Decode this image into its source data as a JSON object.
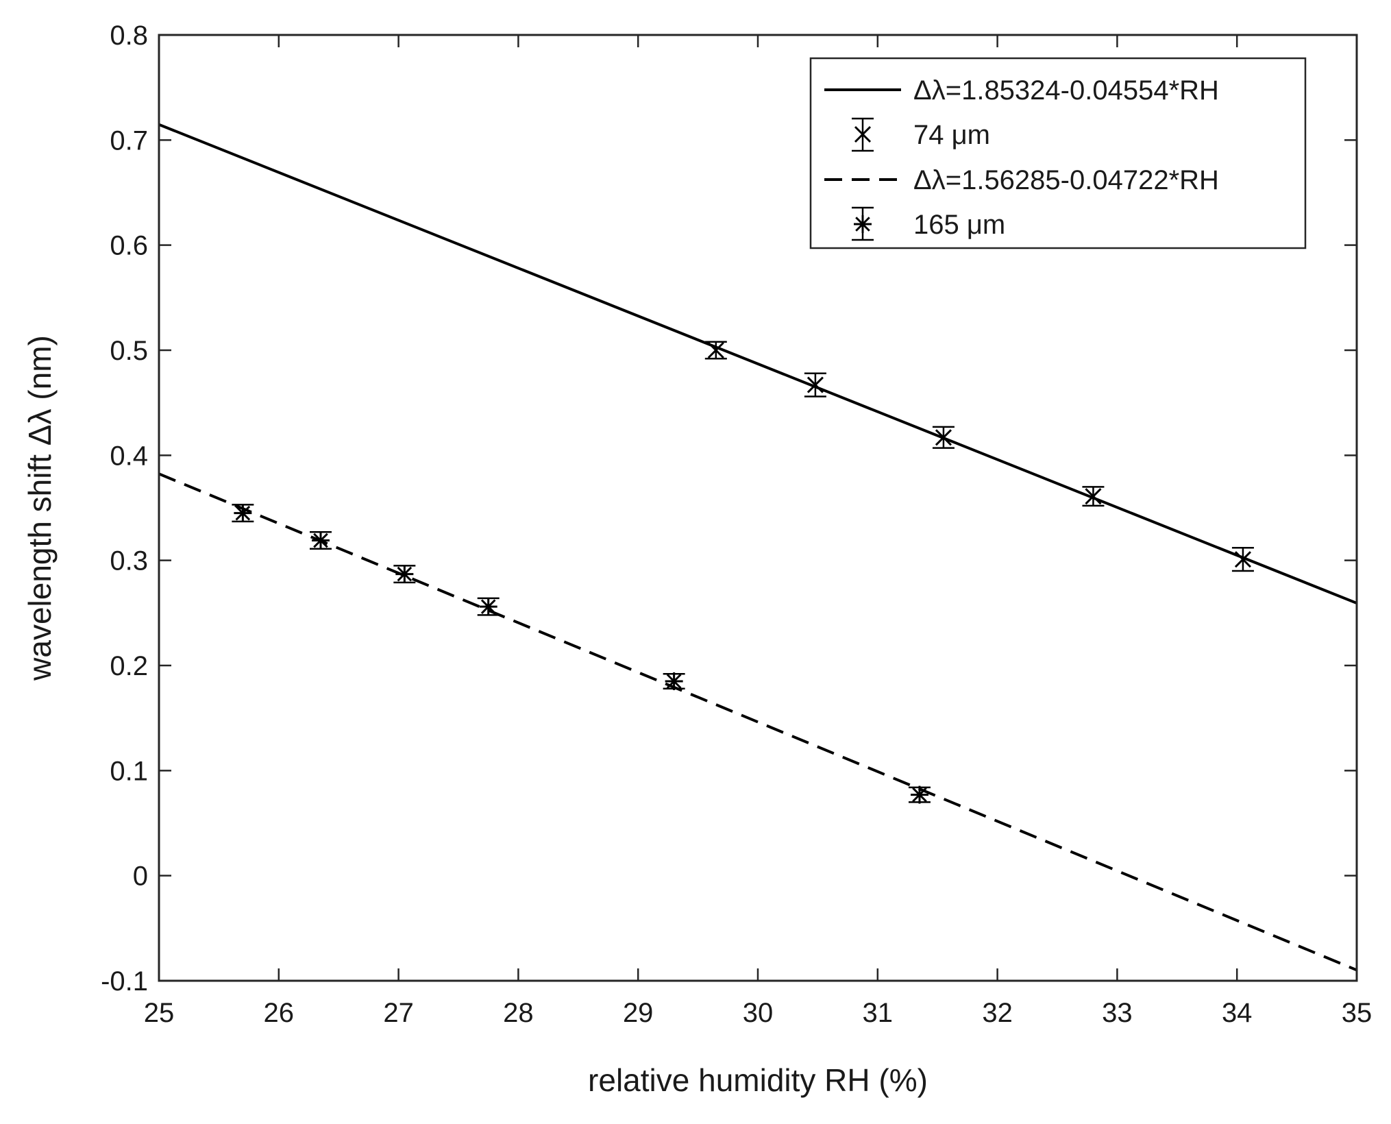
{
  "chart_data": {
    "type": "scatter",
    "title": "",
    "xlabel": "relative humidity RH (%)",
    "ylabel": "wavelength shift Δλ (nm)",
    "xlim": [
      25,
      35
    ],
    "ylim": [
      -0.1,
      0.8
    ],
    "xticks": [
      25,
      26,
      27,
      28,
      29,
      30,
      31,
      32,
      33,
      34,
      35
    ],
    "yticks": [
      -0.1,
      0,
      0.1,
      0.2,
      0.3,
      0.4,
      0.5,
      0.6,
      0.7,
      0.8
    ],
    "ytick_labels": [
      "-0.1",
      "0",
      "0.1",
      "0.2",
      "0.3",
      "0.4",
      "0.5",
      "0.6",
      "0.7",
      "0.8"
    ],
    "xtick_labels": [
      "25",
      "26",
      "27",
      "28",
      "29",
      "30",
      "31",
      "32",
      "33",
      "34",
      "35"
    ],
    "grid": false,
    "legend_position": "top-right",
    "series": [
      {
        "name": "Δλ=1.85324-0.04554*RH",
        "kind": "fit-line",
        "line_style": "solid",
        "intercept": 1.85324,
        "slope": -0.04554
      },
      {
        "name": "74 μm",
        "kind": "errorbar",
        "marker": "x",
        "x": [
          29.65,
          30.48,
          31.55,
          32.8,
          34.05
        ],
        "y": [
          0.5,
          0.467,
          0.417,
          0.361,
          0.301
        ],
        "error": [
          0.008,
          0.011,
          0.01,
          0.009,
          0.011
        ]
      },
      {
        "name": "Δλ=1.56285-0.04722*RH",
        "kind": "fit-line",
        "line_style": "dashed",
        "intercept": 1.56285,
        "slope": -0.04722
      },
      {
        "name": "165 μm",
        "kind": "errorbar",
        "marker": "*",
        "x": [
          25.7,
          26.35,
          27.05,
          27.75,
          29.3,
          31.35
        ],
        "y": [
          0.345,
          0.319,
          0.287,
          0.256,
          0.185,
          0.077
        ],
        "error": [
          0.008,
          0.008,
          0.008,
          0.008,
          0.007,
          0.007
        ]
      }
    ],
    "colors": {
      "line": "#000000",
      "axes": "#262626",
      "background": "#ffffff"
    }
  }
}
